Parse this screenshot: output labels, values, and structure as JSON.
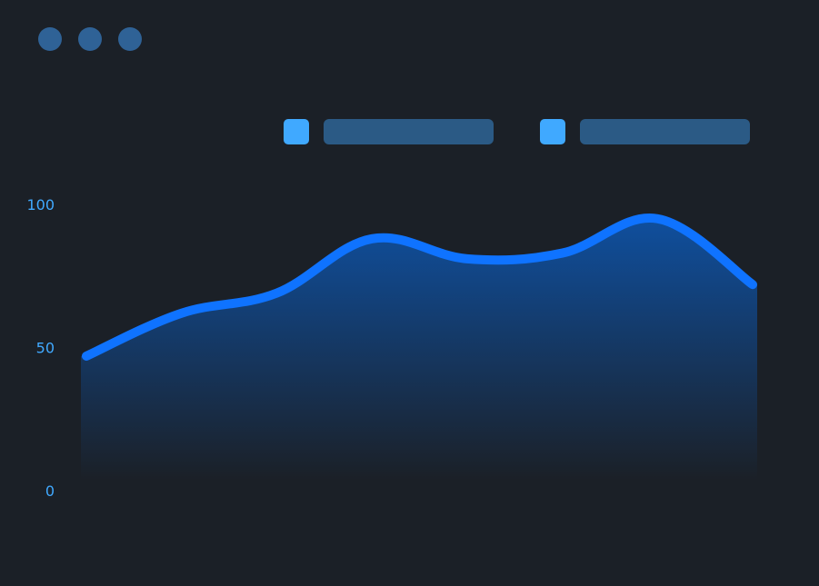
{
  "window": {
    "dots": [
      {
        "name": "dot-1",
        "color": "#2f6296"
      },
      {
        "name": "dot-2",
        "color": "#2f6296"
      },
      {
        "name": "dot-3",
        "color": "#2f6296"
      }
    ]
  },
  "legend": {
    "swatch_color": "#40a9ff",
    "label_color": "#2b5a85",
    "items": [
      {
        "name": "legend-item-1"
      },
      {
        "name": "legend-item-2"
      }
    ]
  },
  "colors": {
    "background": "#1b2027",
    "line": "#0f73ff",
    "area_top": "#0f4f9e",
    "area_bottom": "#1b2027",
    "tick_text": "#40a9ff"
  },
  "chart_data": {
    "type": "area",
    "x": [
      0,
      1,
      2,
      3,
      4,
      5,
      6,
      7
    ],
    "series": [
      {
        "values": [
          47,
          62,
          69,
          88,
          81,
          83,
          95,
          72
        ]
      }
    ],
    "ylim": [
      0,
      100
    ],
    "yticks": [
      "0",
      "50",
      "100"
    ],
    "title": "",
    "xlabel": "",
    "ylabel": "",
    "grid": false,
    "smooth": true
  }
}
